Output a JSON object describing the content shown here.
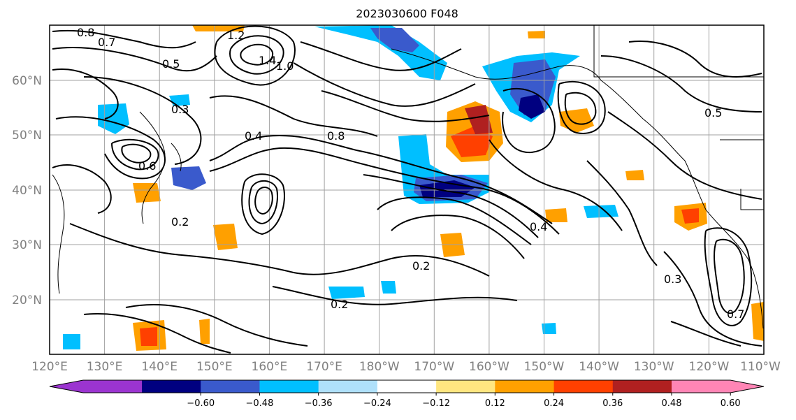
{
  "title": "2023030600 F048",
  "map": {
    "lat_labels": [
      "60°N",
      "50°N",
      "40°N",
      "30°N",
      "20°N"
    ],
    "lon_labels": [
      "120°E",
      "130°E",
      "140°E",
      "150°E",
      "160°E",
      "170°E",
      "180°W",
      "170°W",
      "160°W",
      "150°W",
      "140°W",
      "130°W",
      "120°W",
      "110°W"
    ]
  },
  "colorbar": {
    "ticks": [
      "−0.60",
      "−0.48",
      "−0.36",
      "−0.24",
      "−0.12",
      "0.12",
      "0.24",
      "0.36",
      "0.48",
      "0.60"
    ],
    "colors": [
      "#9b34d0",
      "#000080",
      "#3a5acc",
      "#00bfff",
      "#afe0fa",
      "#ffffff",
      "#ffe680",
      "#ffa000",
      "#ff4000",
      "#b02020",
      "#ff85b5"
    ]
  },
  "contour_labels": [
    "0.8",
    "0.7",
    "0.5",
    "0.3",
    "0.6",
    "0.4",
    "0.2",
    "1.2",
    "1.4",
    "1.0",
    "0.8",
    "0.2",
    "0.4",
    "0.3",
    "0.5",
    "0.2",
    "0.7"
  ],
  "shading_colors": {
    "neg_light": "#afe0fa",
    "neg_mid": "#00bfff",
    "neg_strong": "#3a5acc",
    "neg_max": "#000080",
    "pos_light": "#ffe680",
    "pos_mid": "#ffa000",
    "pos_strong": "#ff4000",
    "pos_max": "#b02020"
  }
}
